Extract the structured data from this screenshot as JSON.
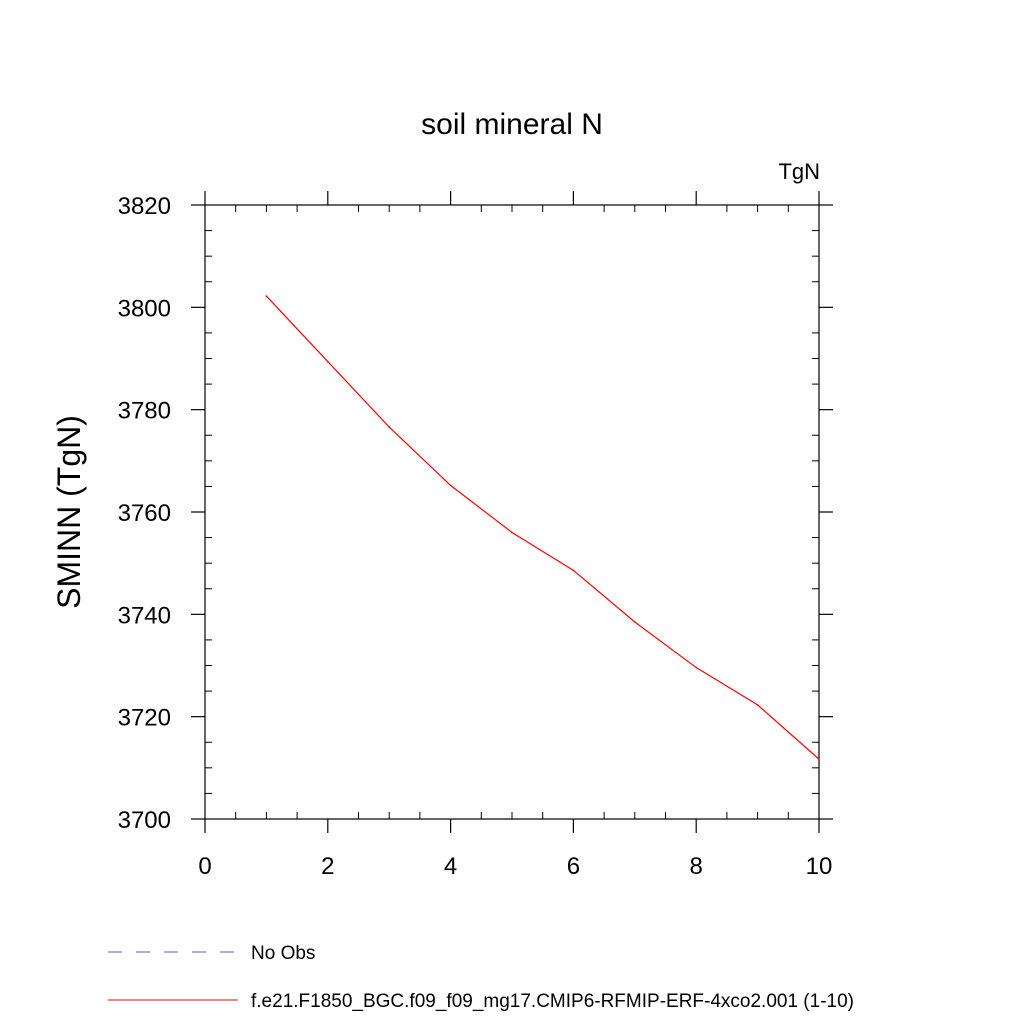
{
  "chart_data": {
    "type": "line",
    "title": "soil mineral N",
    "units": "TgN",
    "ylabel": "SMINN  (TgN)",
    "xlabel": "",
    "xlim": [
      0,
      10
    ],
    "ylim": [
      3700,
      3820
    ],
    "x_ticks": [
      "0",
      "2",
      "4",
      "6",
      "8",
      "10"
    ],
    "y_ticks": [
      "3700",
      "3720",
      "3740",
      "3760",
      "3780",
      "3800",
      "3820"
    ],
    "grid": false,
    "legend_position": "bottom",
    "series": [
      {
        "name": "f.e21.F1850_BGC.f09_f09_mg17.CMIP6-RFMIP-ERF-4xco2.001 (1-10)",
        "color": "#ff0000",
        "style": "solid",
        "x": [
          1,
          2,
          3,
          4,
          5,
          6,
          7,
          8,
          9,
          10
        ],
        "y": [
          3802.2,
          3789.4,
          3776.6,
          3765.2,
          3756.0,
          3748.6,
          3738.5,
          3729.6,
          3722.3,
          3711.7
        ]
      }
    ],
    "legend": [
      {
        "label": "No Obs",
        "color": "#6a5acd",
        "style": "dashed"
      },
      {
        "label": "f.e21.F1850_BGC.f09_f09_mg17.CMIP6-RFMIP-ERF-4xco2.001 (1-10)",
        "color": "#ff0000",
        "style": "solid"
      }
    ]
  }
}
